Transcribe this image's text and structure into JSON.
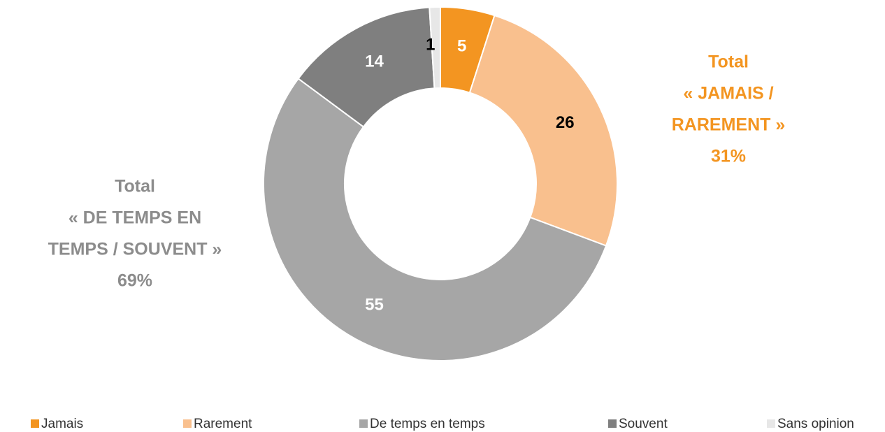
{
  "chart_data": {
    "type": "donut",
    "categories": [
      "Jamais",
      "Rarement",
      "De temps en temps",
      "Souvent",
      "Sans opinion"
    ],
    "values": [
      5,
      26,
      55,
      14,
      1
    ],
    "colors": [
      "#f39521",
      "#f9c08e",
      "#a6a6a6",
      "#7f7f7f",
      "#e7e7e7"
    ],
    "annotations": [
      {
        "lines": [
          "Total",
          "« JAMAIS /",
          "RAREMENT »",
          "31%"
        ],
        "color": "#f39521"
      },
      {
        "lines": [
          "Total",
          "« DE TEMPS EN",
          "TEMPS / SOUVENT »",
          "69%"
        ],
        "color": "#8c8c8c"
      }
    ],
    "legend": "bottom"
  }
}
